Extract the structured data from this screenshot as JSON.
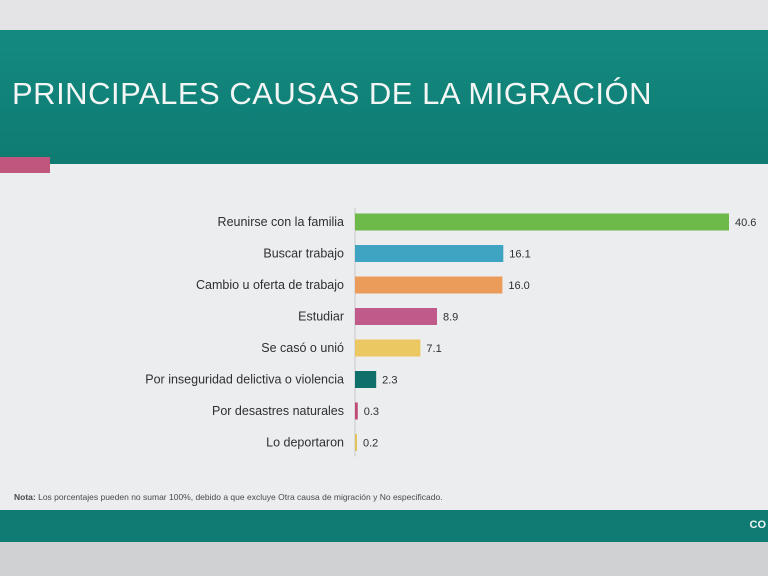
{
  "header": {
    "title": "PRINCIPALES CAUSAS DE LA MIGRACIÓN"
  },
  "colors": {
    "header": "#138a80",
    "accent": "#c0557d",
    "bars": [
      "#6db94a",
      "#3fa4c2",
      "#eb9b5a",
      "#c05a8a",
      "#ecc862",
      "#0f6f69",
      "#c04a72",
      "#e2c45c"
    ]
  },
  "chart_data": {
    "type": "bar",
    "orientation": "horizontal",
    "categories": [
      "Reunirse con la familia",
      "Buscar trabajo",
      "Cambio u oferta de trabajo",
      "Estudiar",
      "Se casó o unió",
      "Por inseguridad delictiva o violencia",
      "Por desastres naturales",
      "Lo deportaron"
    ],
    "values": [
      40.6,
      16.1,
      16.0,
      8.9,
      7.1,
      2.3,
      0.3,
      0.2
    ],
    "value_labels": [
      "40.6",
      "16.1",
      "16.0",
      "8.9",
      "7.1",
      "2.3",
      "0.3",
      "0.2"
    ],
    "xlim": [
      0,
      40.6
    ],
    "grid": false,
    "legend": "none"
  },
  "note": {
    "label": "Nota:",
    "text": " Los porcentajes pueden no sumar 100%, debido a que  excluye Otra causa de migración y No especificado."
  },
  "footer": {
    "text": "CO"
  }
}
